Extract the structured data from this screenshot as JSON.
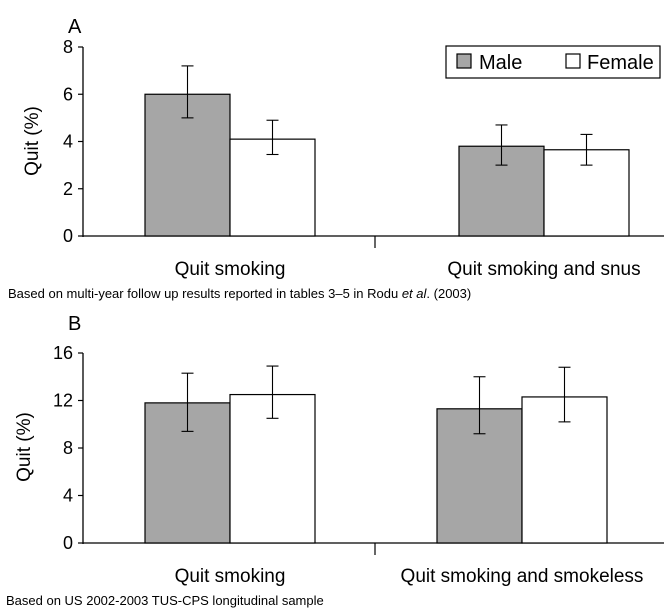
{
  "chart_data": [
    {
      "type": "bar",
      "panel_label": "A",
      "categories": [
        "Quit smoking",
        "Quit smoking and snus"
      ],
      "series": [
        {
          "name": "Male",
          "values": [
            6.0,
            3.8
          ],
          "error_low": [
            5.0,
            3.0
          ],
          "error_high": [
            7.2,
            4.7
          ]
        },
        {
          "name": "Female",
          "values": [
            4.1,
            3.65
          ],
          "error_low": [
            3.45,
            3.0
          ],
          "error_high": [
            4.9,
            4.3
          ]
        }
      ],
      "ylabel": "Quit (%)",
      "ylim": [
        0,
        8
      ],
      "yticks": [
        "0",
        "2",
        "4",
        "6",
        "8"
      ],
      "legend_position": "top-right",
      "caption_pre": "Based on multi-year follow up results reported in tables 3–5  in Rodu ",
      "caption_em": "et al",
      "caption_post": ". (2003)"
    },
    {
      "type": "bar",
      "panel_label": "B",
      "categories": [
        "Quit smoking",
        "Quit smoking and smokeless"
      ],
      "series": [
        {
          "name": "Male",
          "values": [
            11.8,
            11.3
          ],
          "error_low": [
            9.4,
            9.2
          ],
          "error_high": [
            14.3,
            14.0
          ]
        },
        {
          "name": "Female",
          "values": [
            12.5,
            12.3
          ],
          "error_low": [
            10.5,
            10.2
          ],
          "error_high": [
            14.9,
            14.8
          ]
        }
      ],
      "ylabel": "Quit (%)",
      "ylim": [
        0,
        16
      ],
      "yticks": [
        "0",
        "4",
        "8",
        "12",
        "16"
      ],
      "caption_pre": "Based on US 2002-2003 TUS-CPS longitudinal sample",
      "caption_em": "",
      "caption_post": ""
    }
  ],
  "colors": {
    "male": "#a6a6a6",
    "female": "#ffffff",
    "stroke": "#000000"
  }
}
